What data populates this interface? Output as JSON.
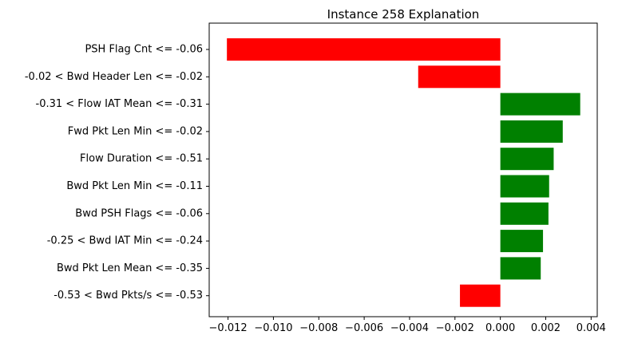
{
  "chart_data": {
    "type": "bar",
    "orientation": "horizontal",
    "title": "Instance 258 Explanation",
    "xlabel": "",
    "ylabel": "",
    "categories": [
      "PSH Flag Cnt <= -0.06",
      "-0.02 < Bwd Header Len <= -0.02",
      "-0.31 < Flow IAT Mean <= -0.31",
      "Fwd Pkt Len Min <= -0.02",
      "Flow Duration <= -0.51",
      "Bwd Pkt Len Min <= -0.11",
      "Bwd PSH Flags <= -0.06",
      "-0.25 < Bwd IAT Min <= -0.24",
      "Bwd Pkt Len Mean <= -0.35",
      "-0.53 < Bwd Pkts/s <= -0.53"
    ],
    "values": [
      -0.01205,
      -0.00362,
      0.00352,
      0.00275,
      0.00235,
      0.00215,
      0.00212,
      0.00188,
      0.00178,
      -0.00178
    ],
    "xlim": [
      -0.01283,
      0.00427
    ],
    "xticks": [
      -0.012,
      -0.01,
      -0.008,
      -0.006,
      -0.004,
      -0.002,
      0.0,
      0.002,
      0.004
    ],
    "xtick_labels": [
      "−0.012",
      "−0.010",
      "−0.008",
      "−0.006",
      "−0.004",
      "−0.002",
      "0.000",
      "0.002",
      "0.004"
    ],
    "colors": {
      "positive": "#008000",
      "negative": "#ff0000"
    },
    "grid": false,
    "legend": false
  }
}
